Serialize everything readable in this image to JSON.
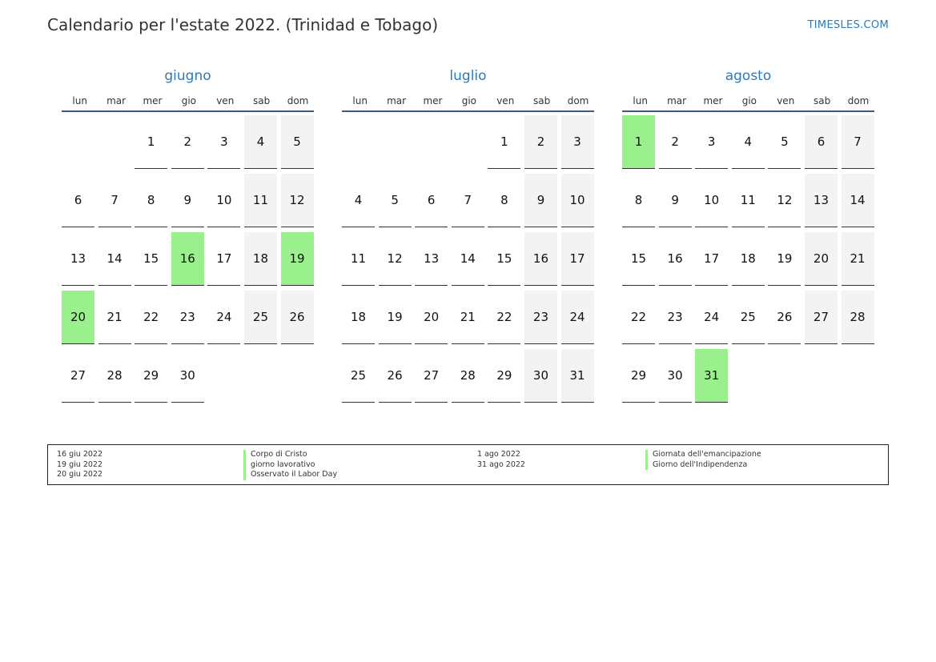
{
  "header": {
    "title": "Calendario per l'estate 2022. (Trinidad e Tobago)",
    "site": "TIMESLES.COM"
  },
  "weekdays": [
    "lun",
    "mar",
    "mer",
    "gio",
    "ven",
    "sab",
    "dom"
  ],
  "months": [
    {
      "name": "giugno",
      "offset": 2,
      "days": 30,
      "holidays": [
        16,
        19,
        20
      ]
    },
    {
      "name": "luglio",
      "offset": 4,
      "days": 31,
      "holidays": []
    },
    {
      "name": "agosto",
      "offset": 0,
      "days": 31,
      "holidays": [
        1,
        31
      ]
    }
  ],
  "legend": {
    "left_dates": [
      "16 giu 2022",
      "19 giu 2022",
      "20 giu 2022"
    ],
    "left_names": [
      "Corpo di Cristo",
      "giorno lavorativo",
      "Osservato il Labor Day"
    ],
    "right_dates": [
      "1 ago 2022",
      "31 ago 2022"
    ],
    "right_names": [
      "Giornata dell'emancipazione",
      "Giorno dell'Indipendenza"
    ]
  },
  "colors": {
    "accent": "#2b7bb9",
    "holiday": "#99f08c",
    "weekend": "#f3f3f3",
    "rule": "#3a5a80"
  }
}
